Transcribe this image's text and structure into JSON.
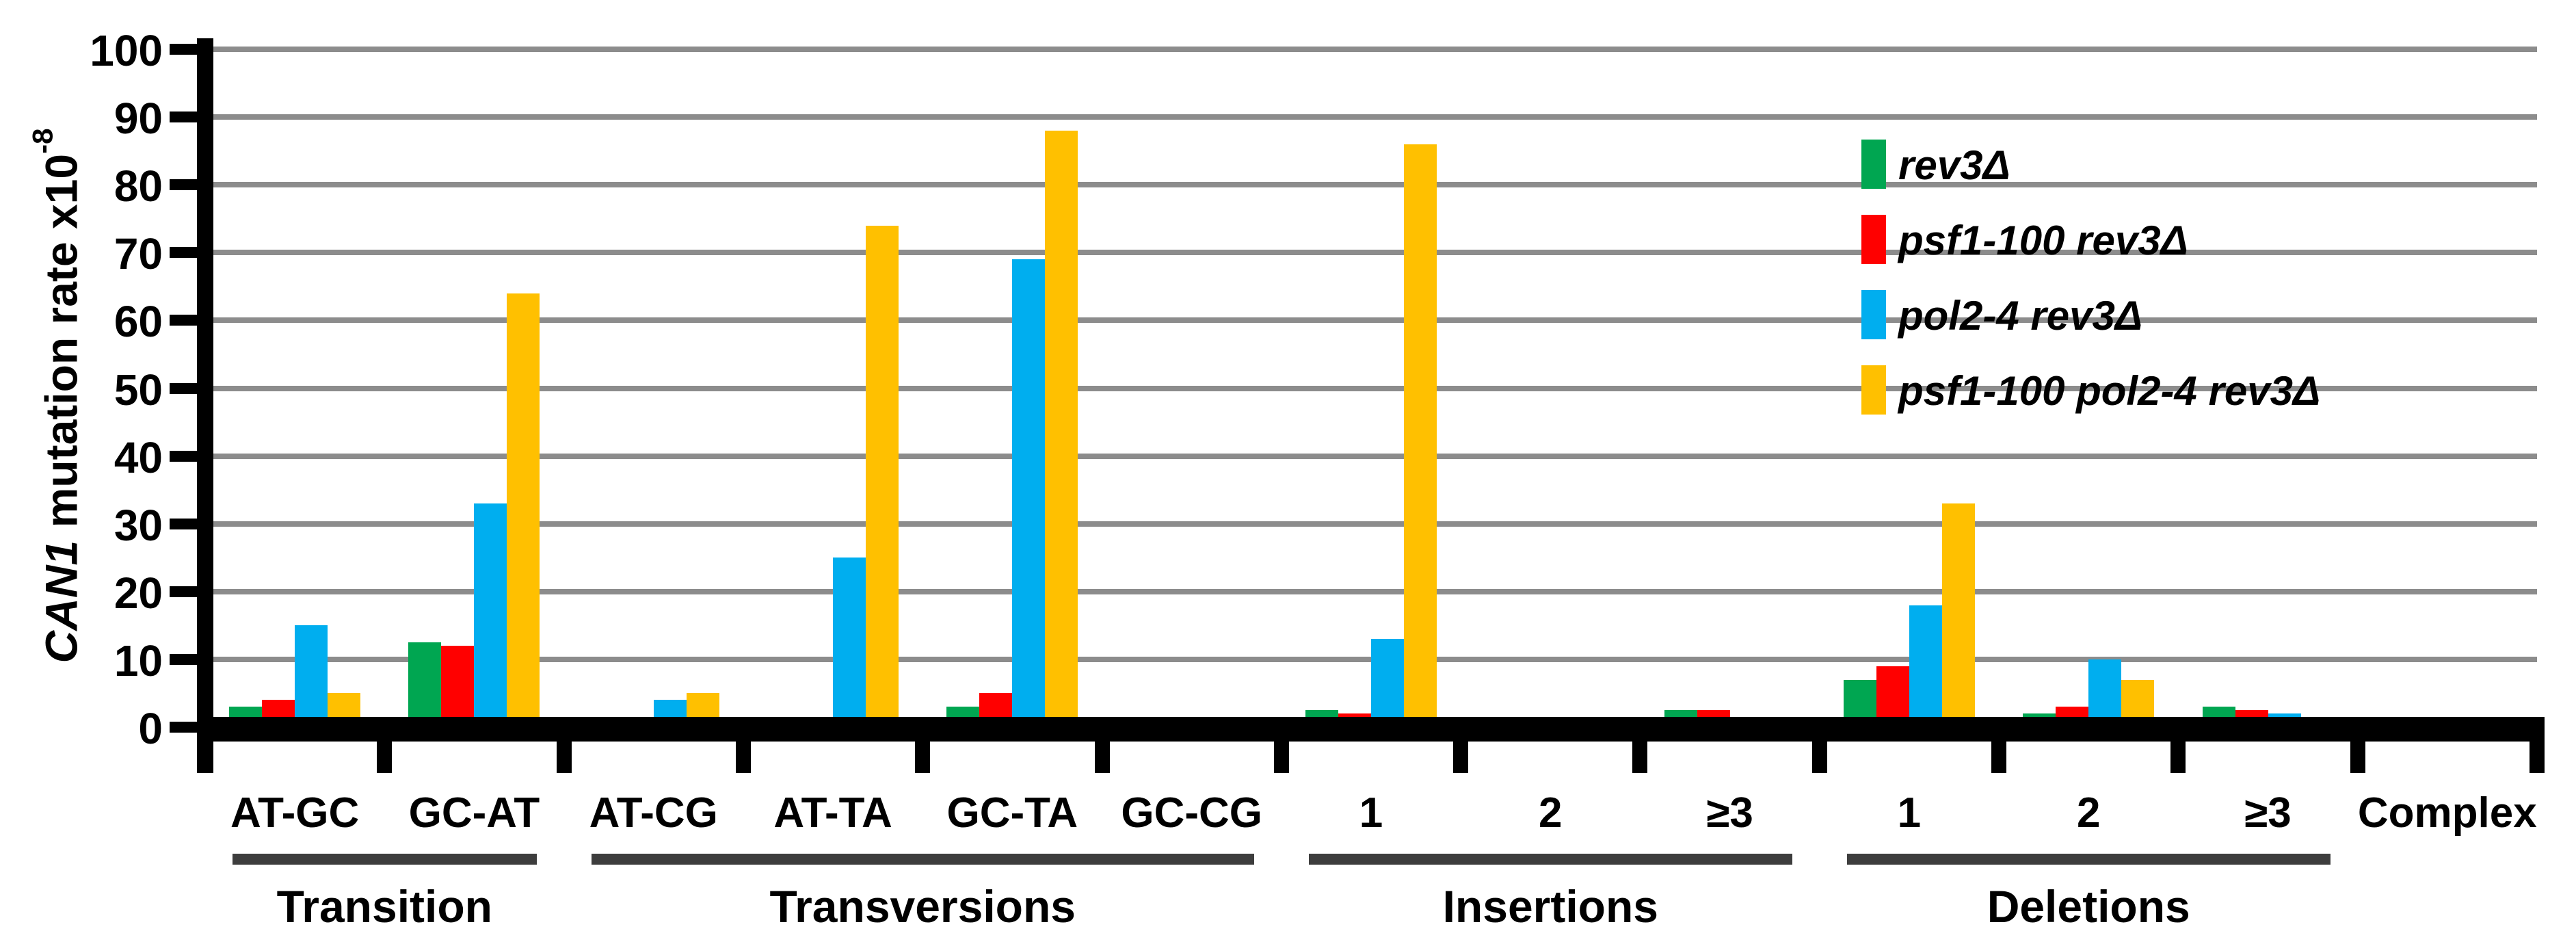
{
  "figure": {
    "y_axis_title": {
      "gene_italic": "CAN1",
      "rest": " mutation rate x10",
      "superscript": "-8"
    }
  },
  "chart_data": {
    "type": "bar",
    "title": "",
    "ylabel": "CAN1 mutation rate x10^-8",
    "xlabel": "",
    "ylim": [
      0,
      100
    ],
    "ytick_step": 10,
    "grid": true,
    "gridline_color": "#8c8c8c",
    "legend_position": "upper-right-inside",
    "categories": [
      "AT-GC",
      "GC-AT",
      "AT-CG",
      "AT-TA",
      "GC-TA",
      "GC-CG",
      "1",
      "2",
      "≥3",
      "1",
      "2",
      "≥3",
      "Complex"
    ],
    "groups": [
      {
        "label": "Transition",
        "from": 0,
        "to": 1,
        "underline": true
      },
      {
        "label": "Transversions",
        "from": 2,
        "to": 5,
        "underline": true
      },
      {
        "label": "Insertions",
        "from": 6,
        "to": 8,
        "underline": true
      },
      {
        "label": "Deletions",
        "from": 9,
        "to": 11,
        "underline": true
      },
      {
        "label": "",
        "from": 12,
        "to": 12,
        "underline": false
      }
    ],
    "series": [
      {
        "name": "rev3Δ",
        "color": "#00a651",
        "values": [
          3,
          12.5,
          0.5,
          1,
          3,
          1.5,
          2.5,
          0,
          2.5,
          7,
          2,
          3,
          0
        ]
      },
      {
        "name": "psf1-100 rev3Δ",
        "color": "#ff0000",
        "values": [
          4,
          12,
          0.5,
          0,
          5,
          0,
          2,
          0,
          2.5,
          9,
          3,
          2.5,
          0
        ]
      },
      {
        "name": "pol2-4 rev3Δ",
        "color": "#00aeef",
        "values": [
          15,
          33,
          4,
          25,
          69,
          1.5,
          13,
          0,
          0,
          18,
          10,
          2,
          0
        ]
      },
      {
        "name": "psf1-100 pol2-4 rev3Δ",
        "color": "#ffc000",
        "values": [
          5,
          64,
          5,
          74,
          88,
          1.5,
          86,
          0,
          0,
          33,
          7,
          0,
          0
        ]
      }
    ]
  }
}
